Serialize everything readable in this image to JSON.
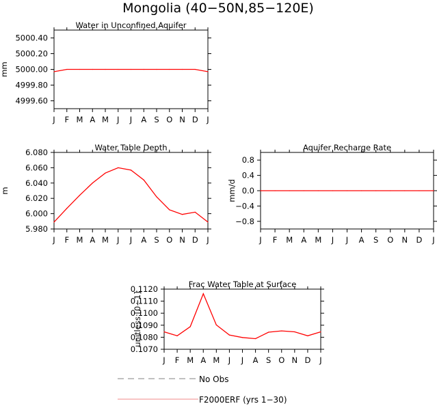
{
  "figure": {
    "title": "Mongolia (40−50N,85−120E)",
    "colors": {
      "model": "#ff0000",
      "obs": "#808080",
      "axis": "#000000",
      "legend_model": "#f4a0a0"
    }
  },
  "chart_data": [
    {
      "type": "line",
      "title": "Water in Unconfined Aquifer",
      "ylabel": "mm",
      "categories": [
        "J",
        "F",
        "M",
        "A",
        "M",
        "J",
        "J",
        "A",
        "S",
        "O",
        "N",
        "D",
        "J"
      ],
      "ylim": [
        4999.5,
        5000.5
      ],
      "yticks": [
        4999.6,
        4999.8,
        5000.0,
        5000.2,
        5000.4
      ],
      "ytick_labels": [
        "4999.60",
        "4999.80",
        "5000.00",
        "5000.20",
        "5000.40"
      ],
      "series": [
        {
          "name": "F2000ERF (yrs 1−30)",
          "values": [
            4999.97,
            5000.0,
            5000.0,
            5000.0,
            5000.0,
            5000.0,
            5000.0,
            5000.0,
            5000.0,
            5000.0,
            5000.0,
            5000.0,
            4999.97
          ]
        }
      ]
    },
    {
      "type": "line",
      "title": "Water Table Depth",
      "ylabel": "m",
      "categories": [
        "J",
        "F",
        "M",
        "A",
        "M",
        "J",
        "J",
        "A",
        "S",
        "O",
        "N",
        "D",
        "J"
      ],
      "ylim": [
        5.98,
        6.08
      ],
      "yticks": [
        5.98,
        6.0,
        6.02,
        6.04,
        6.06,
        6.08
      ],
      "ytick_labels": [
        "5.980",
        "6.000",
        "6.020",
        "6.040",
        "6.060",
        "6.080"
      ],
      "series": [
        {
          "name": "F2000ERF (yrs 1−30)",
          "values": [
            5.989,
            6.007,
            6.024,
            6.04,
            6.053,
            6.06,
            6.057,
            6.044,
            6.022,
            6.005,
            5.999,
            6.002,
            5.989
          ]
        }
      ]
    },
    {
      "type": "line",
      "title": "Aquifer Recharge Rate",
      "ylabel": "mm/d",
      "categories": [
        "J",
        "F",
        "M",
        "A",
        "M",
        "J",
        "J",
        "A",
        "S",
        "O",
        "N",
        "D",
        "J"
      ],
      "ylim": [
        -1.0,
        1.0
      ],
      "yticks": [
        -0.8,
        -0.4,
        0.0,
        0.4,
        0.8
      ],
      "ytick_labels": [
        "−0.8",
        "−0.4",
        "0.0",
        "0.4",
        "0.8"
      ],
      "series": [
        {
          "name": "F2000ERF (yrs 1−30)",
          "values": [
            0,
            0,
            0,
            0,
            0,
            0,
            0,
            0,
            0,
            0,
            0,
            0,
            0
          ]
        }
      ]
    },
    {
      "type": "line",
      "title": "Frac Water Table at Surface",
      "ylabel": "unitless [0−1]",
      "categories": [
        "J",
        "F",
        "M",
        "A",
        "M",
        "J",
        "J",
        "A",
        "S",
        "O",
        "N",
        "D",
        "J"
      ],
      "ylim": [
        0.107,
        0.112
      ],
      "yticks": [
        0.107,
        0.108,
        0.109,
        0.11,
        0.111,
        0.112
      ],
      "ytick_labels": [
        "0.1070",
        "0.1080",
        "0.1090",
        "0.1100",
        "0.1110",
        "0.1120"
      ],
      "series": [
        {
          "name": "F2000ERF (yrs 1−30)",
          "values": [
            0.10845,
            0.10812,
            0.10888,
            0.11162,
            0.10902,
            0.10818,
            0.10798,
            0.10788,
            0.10842,
            0.10853,
            0.10845,
            0.10812,
            0.10845
          ]
        }
      ]
    }
  ],
  "legend": [
    {
      "label": "No Obs",
      "style": "dashed",
      "color": "#808080"
    },
    {
      "label": "F2000ERF (yrs 1−30)",
      "style": "solid",
      "color": "#f4a0a0"
    }
  ]
}
